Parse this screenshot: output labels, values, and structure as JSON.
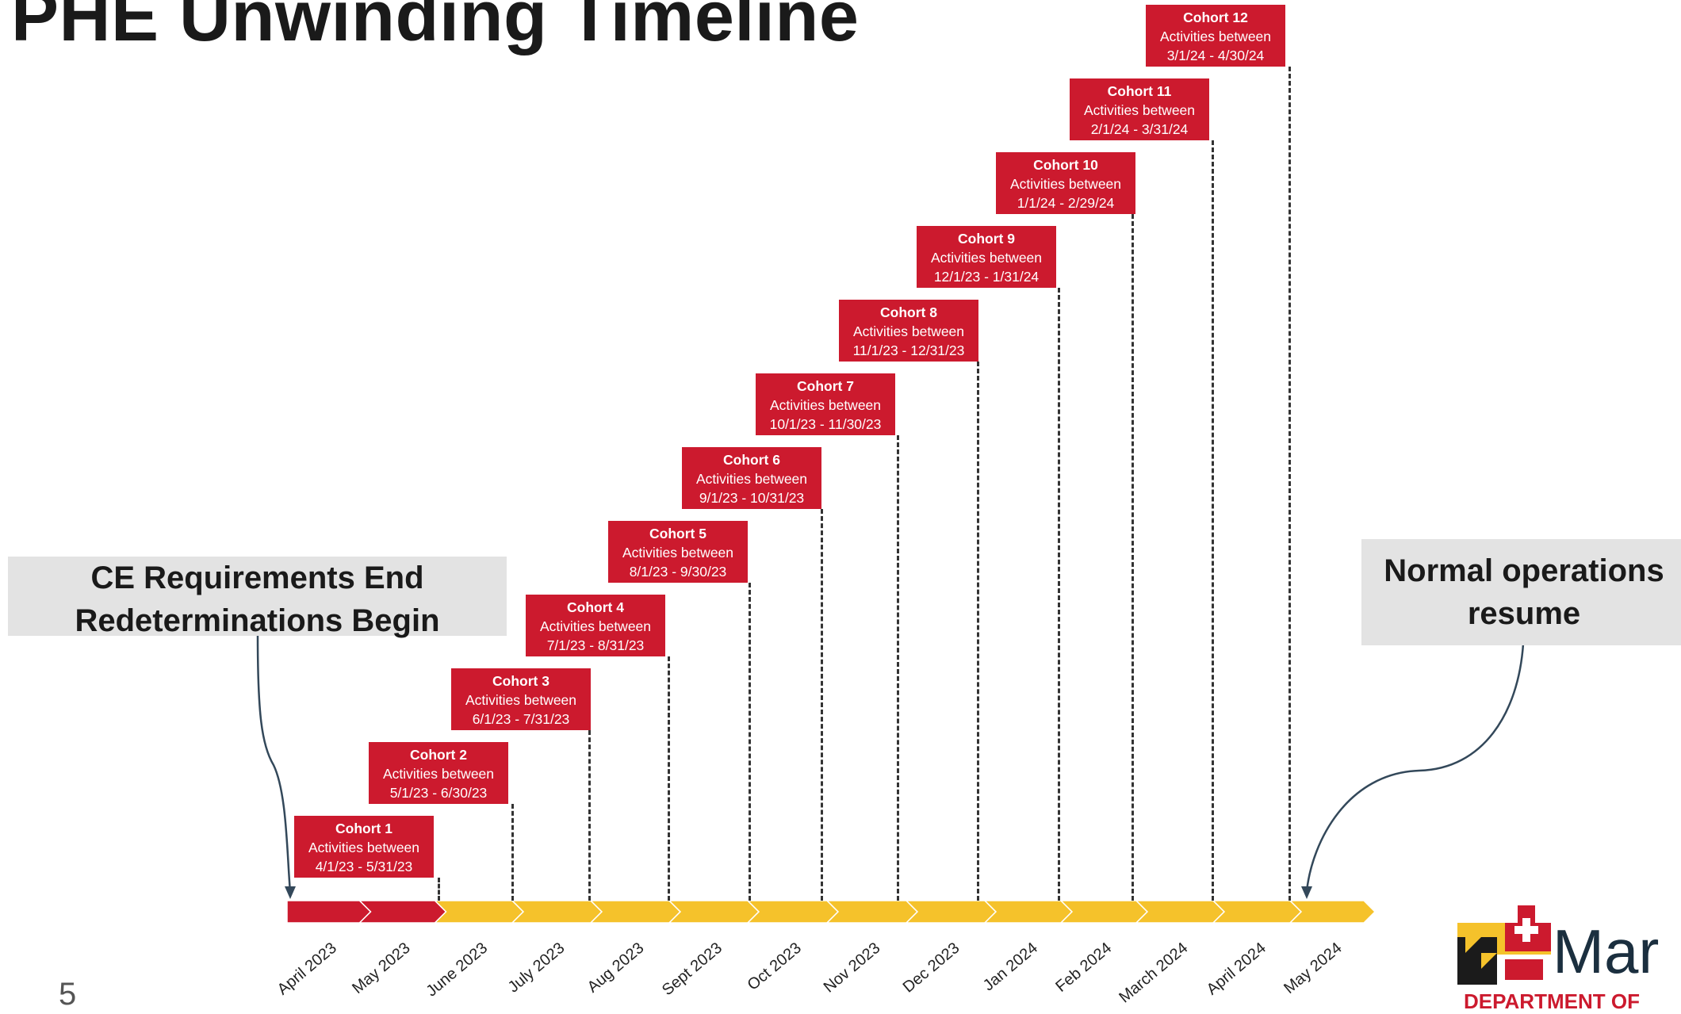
{
  "title": "PHE Unwinding Timeline",
  "page_number": "5",
  "cohort_activity_label": "Activities between",
  "cohorts": [
    {
      "name": "Cohort 1",
      "range": "4/1/23 - 5/31/23"
    },
    {
      "name": "Cohort 2",
      "range": "5/1/23 - 6/30/23"
    },
    {
      "name": "Cohort 3",
      "range": "6/1/23 - 7/31/23"
    },
    {
      "name": "Cohort 4",
      "range": "7/1/23 - 8/31/23"
    },
    {
      "name": "Cohort 5",
      "range": "8/1/23 - 9/30/23"
    },
    {
      "name": "Cohort 6",
      "range": "9/1/23 - 10/31/23"
    },
    {
      "name": "Cohort 7",
      "range": "10/1/23 - 11/30/23"
    },
    {
      "name": "Cohort 8",
      "range": "11/1/23 - 12/31/23"
    },
    {
      "name": "Cohort 9",
      "range": "12/1/23 - 1/31/24"
    },
    {
      "name": "Cohort 10",
      "range": "1/1/24 - 2/29/24"
    },
    {
      "name": "Cohort 11",
      "range": "2/1/24 - 3/31/24"
    },
    {
      "name": "Cohort 12",
      "range": "3/1/24 - 4/30/24"
    }
  ],
  "months": [
    "April 2023",
    "May 2023",
    "June 2023",
    "July 2023",
    "Aug 2023",
    "Sept 2023",
    "Oct 2023",
    "Nov 2023",
    "Dec 2023",
    "Jan 2024",
    "Feb 2024",
    "March 2024",
    "April 2024",
    "May 2024"
  ],
  "callout_left": {
    "line1": "CE Requirements End",
    "line2": "Redeterminations Begin"
  },
  "callout_right": {
    "line1": "Normal operations",
    "line2": "resume"
  },
  "logo": {
    "text": "Mar",
    "subtext": "DEPARTMENT OF"
  },
  "colors": {
    "red": "#cc1a2e",
    "yellow": "#f5c22b",
    "callout_bg": "#e3e3e3",
    "logo_navy": "#1b2f3f"
  }
}
